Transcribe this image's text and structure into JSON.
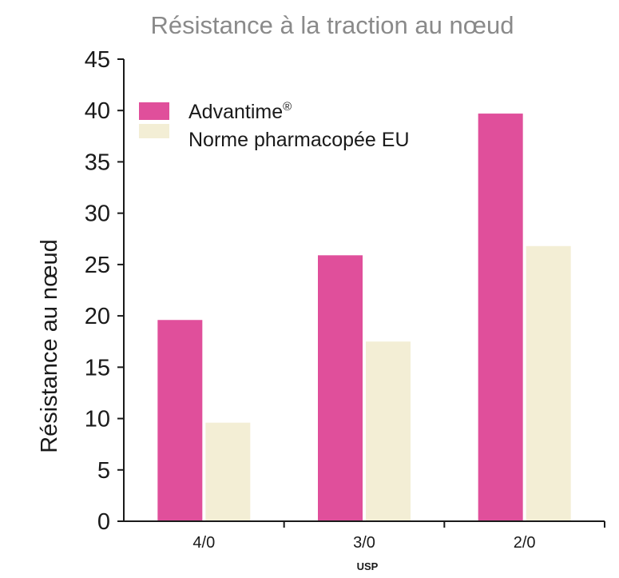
{
  "chart_data": {
    "type": "bar",
    "title": "Résistance à la traction au nœud",
    "xlabel": "USP",
    "ylabel": "Résistance au nœud",
    "categories": [
      "4/0",
      "3/0",
      "2/0"
    ],
    "ylim": [
      0,
      45
    ],
    "yticks": [
      0,
      5,
      10,
      15,
      20,
      25,
      30,
      35,
      40,
      45
    ],
    "grid": false,
    "legend_position": "top-left",
    "series": [
      {
        "name": "Advantime",
        "name_sup": "®",
        "color": "#e04f9b",
        "values": [
          19.6,
          25.9,
          39.7
        ]
      },
      {
        "name": "Norme pharmacopée EU",
        "color": "#f3eed5",
        "values": [
          9.6,
          17.5,
          26.8
        ]
      }
    ]
  }
}
